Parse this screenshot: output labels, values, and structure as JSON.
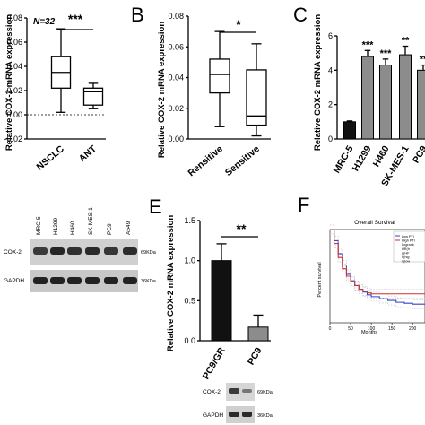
{
  "chart_data": [
    {
      "id": "A",
      "type": "box",
      "panel_letter": "",
      "ylabel": "Relative COX-2 mRNA expression",
      "ylim": [
        -0.02,
        0.08
      ],
      "yticks": [
        "-0.02",
        "0.00",
        "0.02",
        "0.04",
        "0.06",
        "0.08"
      ],
      "categories": [
        "NSCLC",
        "ANT"
      ],
      "annotation": "N=32",
      "significance": "***",
      "boxes": [
        {
          "min": 0.002,
          "q1": 0.022,
          "median": 0.035,
          "q3": 0.048,
          "max": 0.071
        },
        {
          "min": 0.005,
          "q1": 0.008,
          "median": 0.019,
          "q3": 0.022,
          "max": 0.026
        }
      ]
    },
    {
      "id": "B",
      "type": "box",
      "panel_letter": "B",
      "ylabel": "Relative COX-2 mRNA expression",
      "ylim": [
        0.0,
        0.08
      ],
      "yticks": [
        "0.00",
        "0.02",
        "0.04",
        "0.06",
        "0.08"
      ],
      "categories": [
        "Rensitive",
        "Sensitive"
      ],
      "significance": "*",
      "boxes": [
        {
          "min": 0.008,
          "q1": 0.03,
          "median": 0.042,
          "q3": 0.052,
          "max": 0.07
        },
        {
          "min": 0.002,
          "q1": 0.009,
          "median": 0.015,
          "q3": 0.045,
          "max": 0.062
        }
      ]
    },
    {
      "id": "C",
      "type": "bar",
      "panel_letter": "C",
      "ylabel": "Relative COX-2 mRNA expression",
      "ylim": [
        0,
        6
      ],
      "yticks": [
        "0",
        "2",
        "4",
        "6"
      ],
      "categories": [
        "MRC-5",
        "H1299",
        "H460",
        "SK-MES-1",
        "PC9"
      ],
      "values": [
        1.0,
        4.8,
        4.3,
        4.9,
        4.0
      ],
      "errors": [
        0.05,
        0.35,
        0.35,
        0.5,
        0.3
      ],
      "significance": [
        "",
        "***",
        "***",
        "**",
        "**"
      ],
      "colors": [
        "#111111",
        "#8c8c8c",
        "#8c8c8c",
        "#8c8c8c",
        "#8c8c8c"
      ]
    },
    {
      "id": "E",
      "type": "bar",
      "panel_letter": "E",
      "ylabel": "Relative COX-2 mRNA expression",
      "ylim": [
        0,
        1.5
      ],
      "yticks": [
        "0.0",
        "0.5",
        "1.0",
        "1.5"
      ],
      "categories": [
        "PC9/GR",
        "PC9"
      ],
      "values": [
        1.0,
        0.17
      ],
      "errors": [
        0.21,
        0.15
      ],
      "significance": "**",
      "colors": [
        "#111111",
        "#8c8c8c"
      ]
    },
    {
      "id": "F",
      "type": "line",
      "panel_letter": "F",
      "title": "Overall Survival",
      "xlabel": "Months",
      "ylabel": "Percent survival",
      "xticks": [
        "0",
        "50",
        "100",
        "150",
        "200"
      ],
      "xlim": [
        0,
        230
      ],
      "ylim": [
        0,
        1
      ],
      "legend_entries": [
        "Low PTI",
        "High PTI",
        "Logrank",
        "HR(h",
        "p(HF",
        "n(hig",
        "n(low"
      ],
      "series": [
        {
          "name": "",
          "color": "#3344cc",
          "x": [
            0,
            10,
            20,
            30,
            40,
            50,
            60,
            70,
            80,
            90,
            100,
            120,
            140,
            160,
            180,
            200,
            230
          ],
          "y": [
            1.0,
            0.88,
            0.74,
            0.62,
            0.52,
            0.45,
            0.4,
            0.36,
            0.33,
            0.3,
            0.28,
            0.26,
            0.24,
            0.22,
            0.21,
            0.2,
            0.2
          ]
        },
        {
          "name": "",
          "color": "#cc3333",
          "x": [
            0,
            10,
            20,
            30,
            40,
            50,
            60,
            70,
            80,
            90,
            100,
            120,
            140,
            160,
            180,
            200,
            230
          ],
          "y": [
            1.0,
            0.85,
            0.7,
            0.58,
            0.5,
            0.44,
            0.4,
            0.36,
            0.34,
            0.32,
            0.31,
            0.31,
            0.31,
            0.31,
            0.31,
            0.31,
            0.31
          ]
        }
      ]
    }
  ],
  "blots": {
    "D": {
      "lanes": [
        "MRC-5",
        "H1299",
        "H460",
        "SK-MES-1",
        "PC9",
        "A549"
      ],
      "rows": [
        {
          "label": "COX-2",
          "kda": "69KDa"
        },
        {
          "label": "GAPDH",
          "kda": "36KDa"
        }
      ]
    },
    "E": {
      "rows": [
        {
          "label": "COX-2",
          "kda": "69KDa"
        },
        {
          "label": "GAPDH",
          "kda": "36KDa"
        }
      ]
    }
  }
}
